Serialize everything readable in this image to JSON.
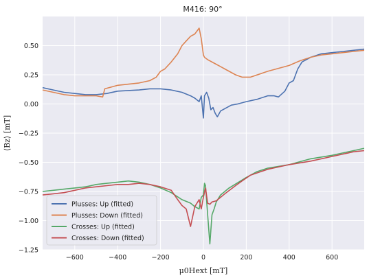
{
  "chart_data": {
    "type": "line",
    "title": "M416: 90°",
    "xlabel": "μ0Hext [mT]",
    "ylabel": "⟨Bz⟩ [mT]",
    "xlim": [
      -750,
      750
    ],
    "ylim": [
      -1.25,
      0.75
    ],
    "xticks": [
      "−600",
      "−400",
      "−200",
      "0",
      "200",
      "400",
      "600"
    ],
    "xtick_values": [
      -600,
      -400,
      -200,
      0,
      200,
      400,
      600
    ],
    "yticks": [
      "0.50",
      "0.25",
      "0.00",
      "−0.25",
      "−0.50",
      "−0.75",
      "−1.00",
      "−1.25"
    ],
    "ytick_values": [
      0.5,
      0.25,
      0.0,
      -0.25,
      -0.5,
      -0.75,
      -1.0,
      -1.25
    ],
    "grid": true,
    "legend_position": "lower-left",
    "series": [
      {
        "name": "Plusses: Up (fitted)",
        "color": "#4c72b0",
        "x": [
          -750,
          -700,
          -650,
          -600,
          -550,
          -500,
          -450,
          -400,
          -300,
          -250,
          -200,
          -150,
          -100,
          -60,
          -40,
          -20,
          -10,
          0,
          5,
          15,
          25,
          35,
          45,
          55,
          65,
          80,
          100,
          130,
          160,
          200,
          250,
          300,
          330,
          350,
          380,
          400,
          420,
          440,
          460,
          500,
          550,
          600,
          650,
          700,
          750
        ],
        "y": [
          0.14,
          0.12,
          0.1,
          0.09,
          0.08,
          0.08,
          0.09,
          0.11,
          0.12,
          0.13,
          0.13,
          0.12,
          0.1,
          0.07,
          0.05,
          0.02,
          0.07,
          -0.12,
          0.07,
          0.1,
          0.05,
          -0.05,
          -0.03,
          -0.08,
          -0.11,
          -0.06,
          -0.04,
          -0.01,
          0.0,
          0.02,
          0.04,
          0.07,
          0.07,
          0.06,
          0.11,
          0.18,
          0.2,
          0.3,
          0.36,
          0.4,
          0.43,
          0.44,
          0.45,
          0.46,
          0.47
        ]
      },
      {
        "name": "Plusses: Down (fitted)",
        "color": "#dd8452",
        "x": [
          -750,
          -700,
          -650,
          -600,
          -550,
          -500,
          -470,
          -460,
          -420,
          -400,
          -300,
          -250,
          -220,
          -200,
          -180,
          -150,
          -120,
          -100,
          -80,
          -60,
          -40,
          -20,
          -10,
          0,
          5,
          20,
          50,
          80,
          100,
          150,
          180,
          220,
          300,
          400,
          450,
          500,
          550,
          600,
          650,
          700,
          750
        ],
        "y": [
          0.12,
          0.1,
          0.08,
          0.07,
          0.07,
          0.07,
          0.06,
          0.13,
          0.15,
          0.16,
          0.18,
          0.2,
          0.23,
          0.28,
          0.3,
          0.36,
          0.43,
          0.5,
          0.54,
          0.58,
          0.6,
          0.65,
          0.56,
          0.42,
          0.4,
          0.38,
          0.35,
          0.32,
          0.3,
          0.25,
          0.23,
          0.23,
          0.28,
          0.33,
          0.37,
          0.4,
          0.42,
          0.43,
          0.44,
          0.45,
          0.46
        ]
      },
      {
        "name": "Crosses: Up (fitted)",
        "color": "#55a868",
        "x": [
          -750,
          -700,
          -650,
          -600,
          -550,
          -500,
          -450,
          -400,
          -350,
          -300,
          -250,
          -200,
          -150,
          -100,
          -60,
          -40,
          -20,
          -10,
          0,
          5,
          10,
          20,
          30,
          40,
          50,
          60,
          80,
          120,
          200,
          250,
          300,
          400,
          500,
          600,
          650,
          700,
          750
        ],
        "y": [
          -0.75,
          -0.74,
          -0.73,
          -0.72,
          -0.71,
          -0.69,
          -0.68,
          -0.67,
          -0.66,
          -0.67,
          -0.69,
          -0.72,
          -0.76,
          -0.82,
          -0.85,
          -0.88,
          -0.9,
          -0.8,
          -0.78,
          -0.68,
          -0.7,
          -0.95,
          -1.2,
          -0.95,
          -0.9,
          -0.84,
          -0.78,
          -0.72,
          -0.63,
          -0.58,
          -0.55,
          -0.52,
          -0.47,
          -0.44,
          -0.42,
          -0.4,
          -0.38
        ]
      },
      {
        "name": "Crosses: Down (fitted)",
        "color": "#c44e52",
        "x": [
          -750,
          -700,
          -650,
          -600,
          -550,
          -500,
          -450,
          -400,
          -350,
          -300,
          -250,
          -200,
          -150,
          -120,
          -100,
          -80,
          -60,
          -40,
          -20,
          -10,
          0,
          10,
          20,
          30,
          40,
          60,
          80,
          100,
          150,
          180,
          220,
          300,
          400,
          500,
          600,
          650,
          700,
          750
        ],
        "y": [
          -0.78,
          -0.77,
          -0.76,
          -0.74,
          -0.72,
          -0.71,
          -0.7,
          -0.69,
          -0.69,
          -0.68,
          -0.69,
          -0.71,
          -0.74,
          -0.82,
          -0.87,
          -0.9,
          -1.05,
          -0.88,
          -0.82,
          -0.9,
          -0.8,
          -0.72,
          -0.85,
          -0.86,
          -0.84,
          -0.83,
          -0.8,
          -0.77,
          -0.7,
          -0.66,
          -0.61,
          -0.56,
          -0.52,
          -0.49,
          -0.45,
          -0.43,
          -0.41,
          -0.4
        ]
      }
    ]
  }
}
